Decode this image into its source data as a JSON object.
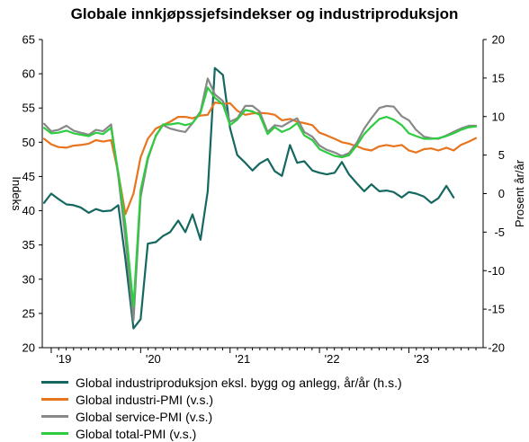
{
  "chart_data": {
    "type": "line",
    "title": "Globale innkjøpssjefsindekser og industriproduksjon",
    "ylabel_left": "Indeks",
    "ylabel_right": "Prosent år/år",
    "ylim_left": [
      20,
      65
    ],
    "ylim_right": [
      -20,
      20
    ],
    "yticks_left": [
      "65",
      "60",
      "55",
      "50",
      "45",
      "40",
      "35",
      "30",
      "25",
      "20"
    ],
    "yticks_right": [
      "20",
      "15",
      "10",
      "5",
      "0",
      "-5",
      "-10",
      "-15",
      "-20"
    ],
    "x_tick_labels": [
      {
        "x": 2019.0,
        "label": "'19"
      },
      {
        "x": 2020.0,
        "label": "'20"
      },
      {
        "x": 2021.0,
        "label": "'21"
      },
      {
        "x": 2022.0,
        "label": "'22"
      },
      {
        "x": 2023.0,
        "label": "'23"
      }
    ],
    "xlim": [
      2018.9,
      2023.83
    ],
    "grid": false,
    "legend_position": "bottom",
    "series": [
      {
        "name": "Global industriproduksjon eksl. bygg og anlegg, år/år (h.s.)",
        "axis": "right",
        "color": "#14685f",
        "x": [
          2018.92,
          2019.0,
          2019.08,
          2019.17,
          2019.25,
          2019.33,
          2019.42,
          2019.5,
          2019.58,
          2019.67,
          2019.75,
          2019.83,
          2019.92,
          2020.0,
          2020.08,
          2020.17,
          2020.25,
          2020.33,
          2020.42,
          2020.5,
          2020.58,
          2020.67,
          2020.75,
          2020.83,
          2020.92,
          2021.0,
          2021.08,
          2021.17,
          2021.25,
          2021.33,
          2021.42,
          2021.5,
          2021.58,
          2021.67,
          2021.75,
          2021.83,
          2021.92,
          2022.0,
          2022.08,
          2022.17,
          2022.25,
          2022.33,
          2022.42,
          2022.5,
          2022.58,
          2022.67,
          2022.75,
          2022.83,
          2022.92,
          2023.0,
          2023.08,
          2023.17,
          2023.25,
          2023.33,
          2023.42,
          2023.5,
          2023.58
        ],
        "values": [
          -1.2,
          0,
          -0.7,
          -1.4,
          -1.5,
          -1.8,
          -2.5,
          -2.0,
          -2.3,
          -2.2,
          -1.5,
          -8.5,
          -17.5,
          -16.3,
          -6.5,
          -6.3,
          -5.5,
          -5.0,
          -3.5,
          -5.0,
          -2.7,
          -6.0,
          0.3,
          16.3,
          15.4,
          8.5,
          5.0,
          4.0,
          3.0,
          3.9,
          4.5,
          2.9,
          2.3,
          6.3,
          4.0,
          4.2,
          3.0,
          2.7,
          2.5,
          2.7,
          4.1,
          2.5,
          1.3,
          0.3,
          1.2,
          0.3,
          0.4,
          0.2,
          -0.5,
          0.2,
          0.0,
          -0.4,
          -1.2,
          -0.6,
          1.0,
          -0.5,
          null
        ]
      },
      {
        "name": "Global industri-PMI (v.s.)",
        "axis": "left",
        "color": "#e8741e",
        "x": [
          2018.92,
          2019.0,
          2019.08,
          2019.17,
          2019.25,
          2019.33,
          2019.42,
          2019.5,
          2019.58,
          2019.67,
          2019.75,
          2019.83,
          2019.92,
          2020.0,
          2020.08,
          2020.17,
          2020.25,
          2020.33,
          2020.42,
          2020.5,
          2020.58,
          2020.67,
          2020.75,
          2020.83,
          2020.92,
          2021.0,
          2021.08,
          2021.17,
          2021.25,
          2021.33,
          2021.42,
          2021.5,
          2021.58,
          2021.67,
          2021.75,
          2021.83,
          2021.92,
          2022.0,
          2022.08,
          2022.17,
          2022.25,
          2022.33,
          2022.42,
          2022.5,
          2022.58,
          2022.67,
          2022.75,
          2022.83,
          2022.92,
          2023.0,
          2023.08,
          2023.17,
          2023.25,
          2023.33,
          2023.42,
          2023.5,
          2023.58,
          2023.67,
          2023.75
        ],
        "values": [
          50.5,
          49.7,
          49.3,
          49.2,
          49.5,
          49.6,
          49.8,
          50.3,
          50.1,
          50.3,
          45.5,
          39.5,
          42.5,
          47.8,
          50.5,
          52.0,
          52.5,
          53.0,
          53.7,
          53.7,
          53.5,
          53.9,
          54.0,
          55.8,
          55.6,
          55.7,
          54.6,
          54.0,
          54.2,
          54.3,
          54.2,
          54.0,
          53.2,
          53.4,
          53.0,
          52.8,
          52.5,
          51.4,
          51.0,
          50.5,
          50.0,
          49.8,
          49.4,
          49.0,
          48.8,
          49.4,
          49.6,
          49.4,
          49.6,
          48.8,
          48.5,
          49.0,
          49.1,
          48.8,
          49.2,
          48.8,
          49.6,
          50.1,
          50.6
        ]
      },
      {
        "name": "Global service-PMI (v.s.)",
        "axis": "left",
        "color": "#888888",
        "x": [
          2018.92,
          2019.0,
          2019.08,
          2019.17,
          2019.25,
          2019.33,
          2019.42,
          2019.5,
          2019.58,
          2019.67,
          2019.75,
          2019.83,
          2019.92,
          2020.0,
          2020.08,
          2020.17,
          2020.25,
          2020.33,
          2020.42,
          2020.5,
          2020.58,
          2020.67,
          2020.75,
          2020.83,
          2020.92,
          2021.0,
          2021.08,
          2021.17,
          2021.25,
          2021.33,
          2021.42,
          2021.5,
          2021.58,
          2021.67,
          2021.75,
          2021.83,
          2021.92,
          2022.0,
          2022.08,
          2022.17,
          2022.25,
          2022.33,
          2022.42,
          2022.5,
          2022.58,
          2022.67,
          2022.75,
          2022.83,
          2022.92,
          2023.0,
          2023.08,
          2023.17,
          2023.25,
          2023.33,
          2023.42,
          2023.5,
          2023.58,
          2023.67,
          2023.75
        ],
        "values": [
          52.7,
          51.6,
          51.8,
          52.4,
          51.7,
          51.4,
          51.1,
          51.8,
          51.6,
          52.6,
          45.0,
          36.0,
          24.0,
          42.0,
          47.5,
          51.0,
          52.5,
          52.0,
          51.7,
          51.5,
          52.8,
          54.5,
          59.3,
          57.0,
          56.0,
          53.0,
          53.5,
          55.3,
          55.3,
          54.5,
          51.5,
          52.5,
          52.3,
          53.0,
          53.5,
          51.5,
          50.8,
          49.5,
          48.9,
          48.5,
          48.0,
          48.4,
          50.0,
          52.0,
          53.5,
          55.0,
          55.3,
          55.2,
          53.8,
          53.2,
          51.8,
          50.8,
          50.6,
          50.5,
          51.0,
          51.5,
          52.0,
          52.4,
          52.4
        ]
      },
      {
        "name": "Global total-PMI (v.s.)",
        "axis": "left",
        "color": "#2ecc40",
        "x": [
          2018.92,
          2019.0,
          2019.08,
          2019.17,
          2019.25,
          2019.33,
          2019.42,
          2019.5,
          2019.58,
          2019.67,
          2019.75,
          2019.83,
          2019.92,
          2020.0,
          2020.08,
          2020.17,
          2020.25,
          2020.33,
          2020.42,
          2020.5,
          2020.58,
          2020.67,
          2020.75,
          2020.83,
          2020.92,
          2021.0,
          2021.08,
          2021.17,
          2021.25,
          2021.33,
          2021.42,
          2021.5,
          2021.58,
          2021.67,
          2021.75,
          2021.83,
          2021.92,
          2022.0,
          2022.08,
          2022.17,
          2022.25,
          2022.33,
          2022.42,
          2022.5,
          2022.58,
          2022.67,
          2022.75,
          2022.83,
          2022.92,
          2023.0,
          2023.08,
          2023.17,
          2023.25,
          2023.33,
          2023.42,
          2023.5,
          2023.58,
          2023.67,
          2023.75
        ],
        "values": [
          52.1,
          51.3,
          51.4,
          51.7,
          51.3,
          51.1,
          50.9,
          51.4,
          51.2,
          52.1,
          45.5,
          38.0,
          26.0,
          43.0,
          47.8,
          50.9,
          52.6,
          52.6,
          52.8,
          52.5,
          52.8,
          54.3,
          58.0,
          56.5,
          55.5,
          52.5,
          53.3,
          54.7,
          54.5,
          54.0,
          51.2,
          52.2,
          51.5,
          52.0,
          52.8,
          51.0,
          50.3,
          49.0,
          48.5,
          48.0,
          47.8,
          48.1,
          49.6,
          51.2,
          52.3,
          53.4,
          53.7,
          53.3,
          52.5,
          51.3,
          50.9,
          50.5,
          50.5,
          50.6,
          50.9,
          51.3,
          51.8,
          52.2,
          52.3
        ]
      }
    ]
  },
  "legend": [
    {
      "label": "Global industriproduksjon eksl. bygg og anlegg, år/år (h.s.)",
      "color": "#14685f"
    },
    {
      "label": "Global industri-PMI (v.s.)",
      "color": "#e8741e"
    },
    {
      "label": "Global service-PMI (v.s.)",
      "color": "#888888"
    },
    {
      "label": "Global total-PMI (v.s.)",
      "color": "#2ecc40"
    }
  ]
}
